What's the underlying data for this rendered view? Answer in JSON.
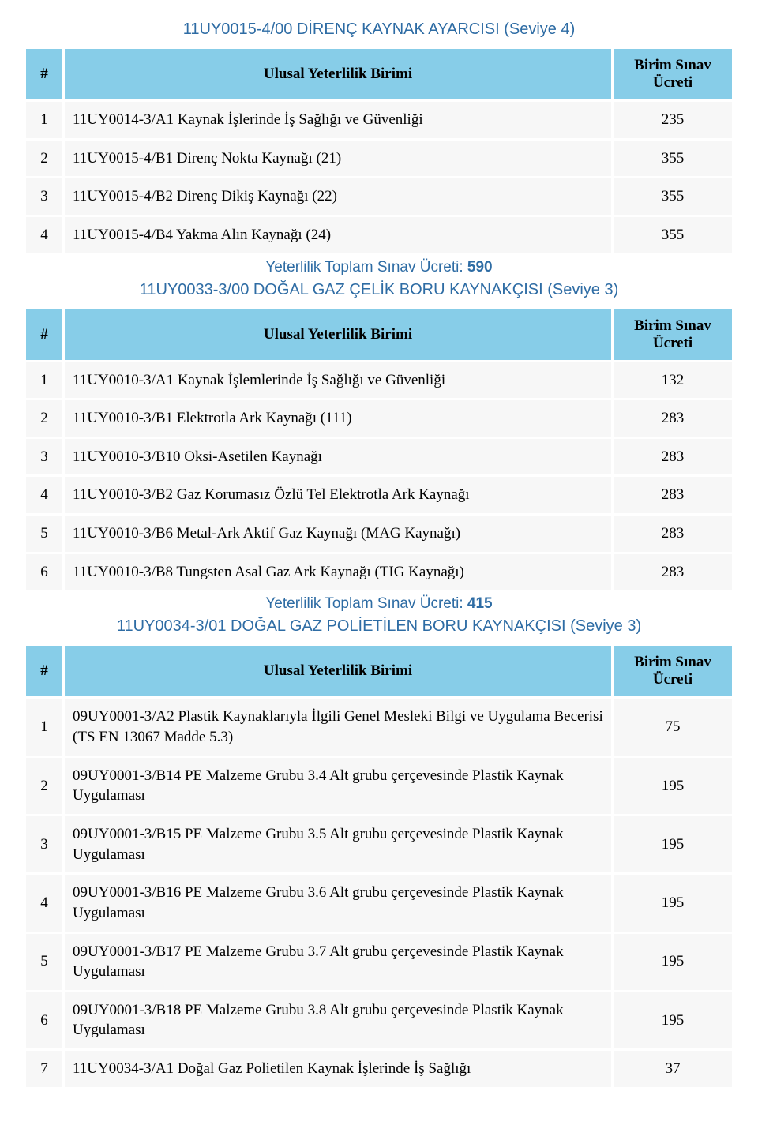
{
  "colors": {
    "accent": "#2e6ca4",
    "header_bg": "#87cde8",
    "row_bg": "#f7f7f7",
    "text": "#000000",
    "page_bg": "#ffffff"
  },
  "typography": {
    "body_font": "Times New Roman",
    "title_font": "Arial",
    "body_size_pt": 14,
    "title_size_pt": 15
  },
  "labels": {
    "col_num": "#",
    "col_unit": "Ulusal Yeterlilik Birimi",
    "col_fee": "Birim Sınav Ücreti",
    "total_prefix": "Yeterlilik Toplam Sınav Ücreti: "
  },
  "sections": [
    {
      "title": "11UY0015-4/00 DİRENÇ KAYNAK AYARCISI (Seviye 4)",
      "rows": [
        {
          "n": "1",
          "unit": "11UY0014-3/A1 Kaynak İşlerinde İş Sağlığı ve Güvenliği",
          "fee": "235"
        },
        {
          "n": "2",
          "unit": "11UY0015-4/B1 Direnç Nokta Kaynağı (21)",
          "fee": "355"
        },
        {
          "n": "3",
          "unit": "11UY0015-4/B2 Direnç Dikiş Kaynağı (22)",
          "fee": "355"
        },
        {
          "n": "4",
          "unit": "11UY0015-4/B4 Yakma Alın Kaynağı (24)",
          "fee": "355"
        }
      ],
      "total": "590"
    },
    {
      "title": "11UY0033-3/00 DOĞAL GAZ ÇELİK BORU KAYNAKÇISI (Seviye 3)",
      "rows": [
        {
          "n": "1",
          "unit": "11UY0010-3/A1 Kaynak İşlemlerinde İş Sağlığı ve Güvenliği",
          "fee": "132"
        },
        {
          "n": "2",
          "unit": "11UY0010-3/B1 Elektrotla Ark Kaynağı (111)",
          "fee": "283"
        },
        {
          "n": "3",
          "unit": "11UY0010-3/B10 Oksi-Asetilen Kaynağı",
          "fee": "283"
        },
        {
          "n": "4",
          "unit": "11UY0010-3/B2 Gaz Korumasız Özlü Tel Elektrotla Ark Kaynağı",
          "fee": "283"
        },
        {
          "n": "5",
          "unit": "11UY0010-3/B6 Metal-Ark Aktif Gaz Kaynağı (MAG Kaynağı)",
          "fee": "283"
        },
        {
          "n": "6",
          "unit": "11UY0010-3/B8 Tungsten Asal Gaz Ark Kaynağı (TIG Kaynağı)",
          "fee": "283"
        }
      ],
      "total": "415"
    },
    {
      "title": "11UY0034-3/01 DOĞAL GAZ POLİETİLEN BORU KAYNAKÇISI (Seviye 3)",
      "rows": [
        {
          "n": "1",
          "unit": "09UY0001-3/A2 Plastik Kaynaklarıyla İlgili Genel Mesleki Bilgi ve Uygulama Becerisi (TS EN 13067 Madde 5.3)",
          "fee": "75"
        },
        {
          "n": "2",
          "unit": "09UY0001-3/B14 PE Malzeme Grubu 3.4 Alt grubu çerçevesinde Plastik Kaynak Uygulaması",
          "fee": "195"
        },
        {
          "n": "3",
          "unit": "09UY0001-3/B15 PE Malzeme Grubu 3.5 Alt grubu çerçevesinde Plastik Kaynak Uygulaması",
          "fee": "195"
        },
        {
          "n": "4",
          "unit": "09UY0001-3/B16 PE Malzeme Grubu 3.6 Alt grubu çerçevesinde Plastik Kaynak Uygulaması",
          "fee": "195"
        },
        {
          "n": "5",
          "unit": "09UY0001-3/B17 PE Malzeme Grubu 3.7 Alt grubu çerçevesinde Plastik Kaynak Uygulaması",
          "fee": "195"
        },
        {
          "n": "6",
          "unit": "09UY0001-3/B18 PE Malzeme Grubu 3.8 Alt grubu çerçevesinde Plastik Kaynak Uygulaması",
          "fee": "195"
        },
        {
          "n": "7",
          "unit": "11UY0034-3/A1 Doğal Gaz Polietilen Kaynak İşlerinde İş Sağlığı",
          "fee": "37"
        }
      ],
      "total": null
    }
  ]
}
